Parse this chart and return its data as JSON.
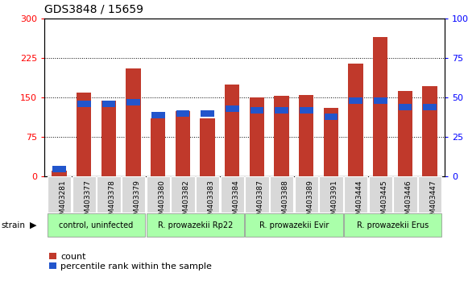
{
  "title": "GDS3848 / 15659",
  "samples": [
    "GSM403281",
    "GSM403377",
    "GSM403378",
    "GSM403379",
    "GSM403380",
    "GSM403382",
    "GSM403383",
    "GSM403384",
    "GSM403387",
    "GSM403388",
    "GSM403389",
    "GSM403391",
    "GSM403444",
    "GSM403445",
    "GSM403446",
    "GSM403447"
  ],
  "count_values": [
    12,
    160,
    145,
    205,
    110,
    125,
    110,
    175,
    150,
    153,
    155,
    130,
    215,
    265,
    162,
    172
  ],
  "percentile_values": [
    5,
    46,
    46,
    47,
    39,
    40,
    40,
    43,
    42,
    42,
    42,
    38,
    48,
    48,
    44,
    44
  ],
  "groups": [
    {
      "label": "control, uninfected",
      "start": 0,
      "end": 4
    },
    {
      "label": "R. prowazekii Rp22",
      "start": 4,
      "end": 8
    },
    {
      "label": "R. prowazekii Evir",
      "start": 8,
      "end": 12
    },
    {
      "label": "R. prowazekii Erus",
      "start": 12,
      "end": 16
    }
  ],
  "bar_color_count": "#c0392b",
  "bar_color_pct": "#2255cc",
  "ylim_left": [
    0,
    300
  ],
  "ylim_right": [
    0,
    100
  ],
  "yticks_left": [
    0,
    75,
    150,
    225,
    300
  ],
  "yticks_right": [
    0,
    25,
    50,
    75,
    100
  ],
  "bg_color": "#ffffff",
  "plot_bg": "#ffffff",
  "group_bg": "#aaffaa",
  "sample_bg": "#d8d8d8"
}
